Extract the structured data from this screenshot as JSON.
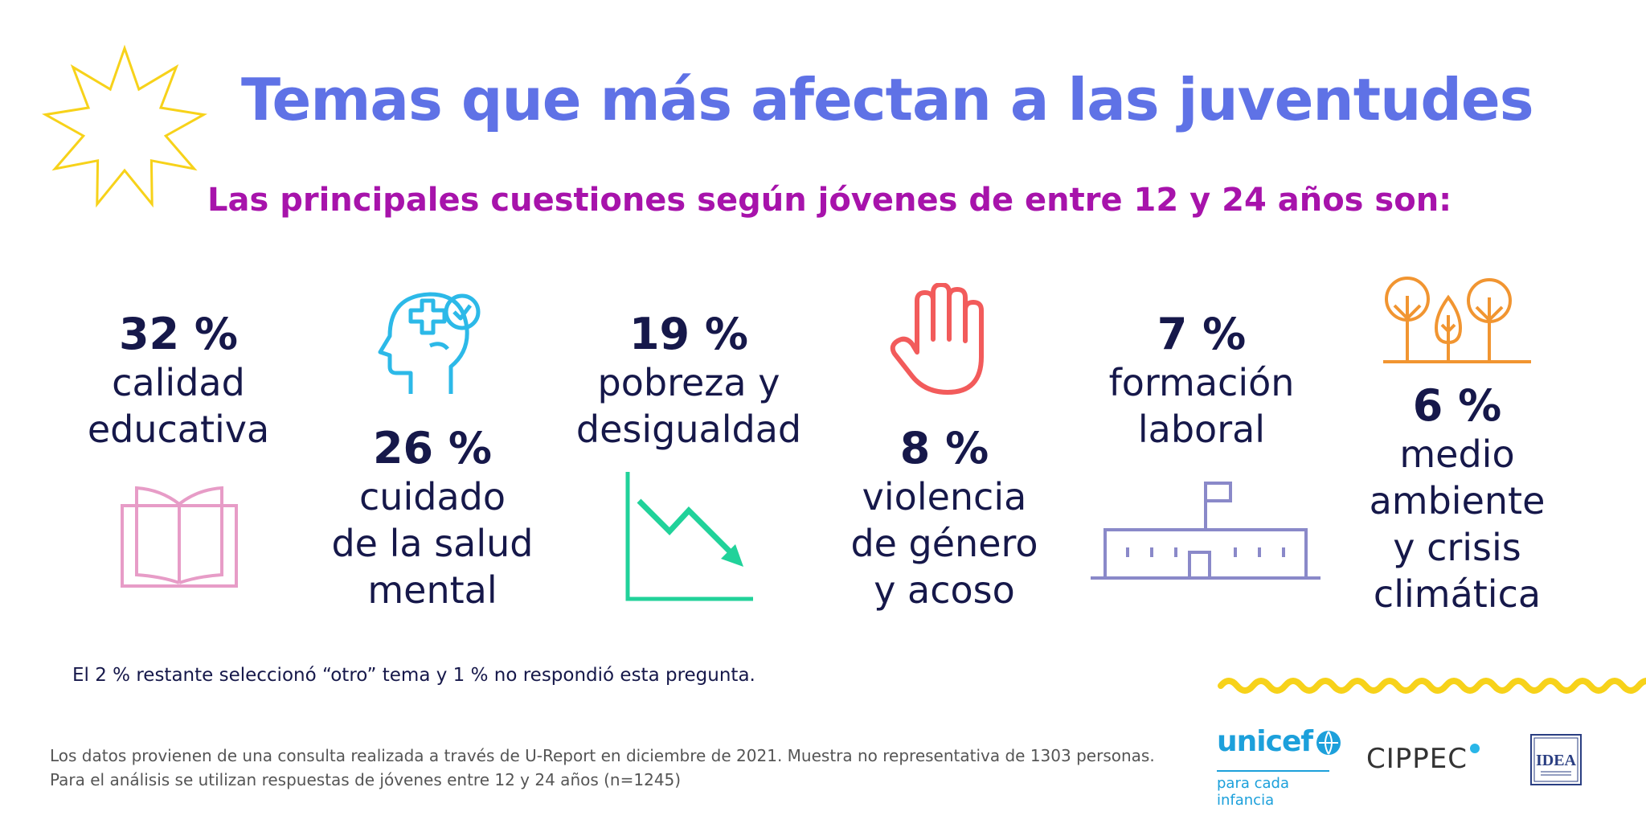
{
  "title": "Temas que más afectan a las juventudes",
  "subtitle": "Las principales cuestiones según jóvenes de entre 12 y 24 años son:",
  "note": "El 2 % restante seleccionó “otro” tema y 1 % no respondió esta pregunta.",
  "source": {
    "line1": "Los datos provienen de una consulta realizada a través de U-Report en diciembre de 2021. Muestra no representativa de 1303 personas.",
    "line2": "Para el análisis se utilizan respuestas de jóvenes entre 12 y 24 años (n=1245)"
  },
  "logos": {
    "unicef": "unicef",
    "unicef_tagline": "para cada infancia",
    "cippec": "CIPPEC",
    "idea": "IDEA"
  },
  "colors": {
    "title": "#5f72e6",
    "subtitle": "#a713ab",
    "text": "#16184a",
    "book": "#e79cc7",
    "head": "#2cb9e8",
    "arrow": "#21d29a",
    "hand": "#f25b5b",
    "building": "#8a89c9",
    "trees": "#f19531",
    "star": "#f7d21a",
    "wave": "#f7d21a"
  },
  "chart_data": {
    "type": "table",
    "title": "Temas que más afectan a las juventudes",
    "subtitle": "Las principales cuestiones según jóvenes de entre 12 y 24 años son:",
    "unit": "%",
    "items": [
      {
        "pct": "32 %",
        "value": 32,
        "label": [
          "calidad",
          "educativa"
        ],
        "icon": "book-icon"
      },
      {
        "pct": "26 %",
        "value": 26,
        "label": [
          "cuidado",
          "de la salud",
          "mental"
        ],
        "icon": "mental-health-head-icon"
      },
      {
        "pct": "19 %",
        "value": 19,
        "label": [
          "pobreza y",
          "desigualdad"
        ],
        "icon": "declining-chart-icon"
      },
      {
        "pct": "8 %",
        "value": 8,
        "label": [
          "violencia",
          "de género",
          "y acoso"
        ],
        "icon": "stop-hand-icon"
      },
      {
        "pct": "7 %",
        "value": 7,
        "label": [
          "formación",
          "laboral"
        ],
        "icon": "school-building-icon"
      },
      {
        "pct": "6 %",
        "value": 6,
        "label": [
          "medio",
          "ambiente",
          "y crisis",
          "climática"
        ],
        "icon": "trees-icon"
      }
    ]
  }
}
